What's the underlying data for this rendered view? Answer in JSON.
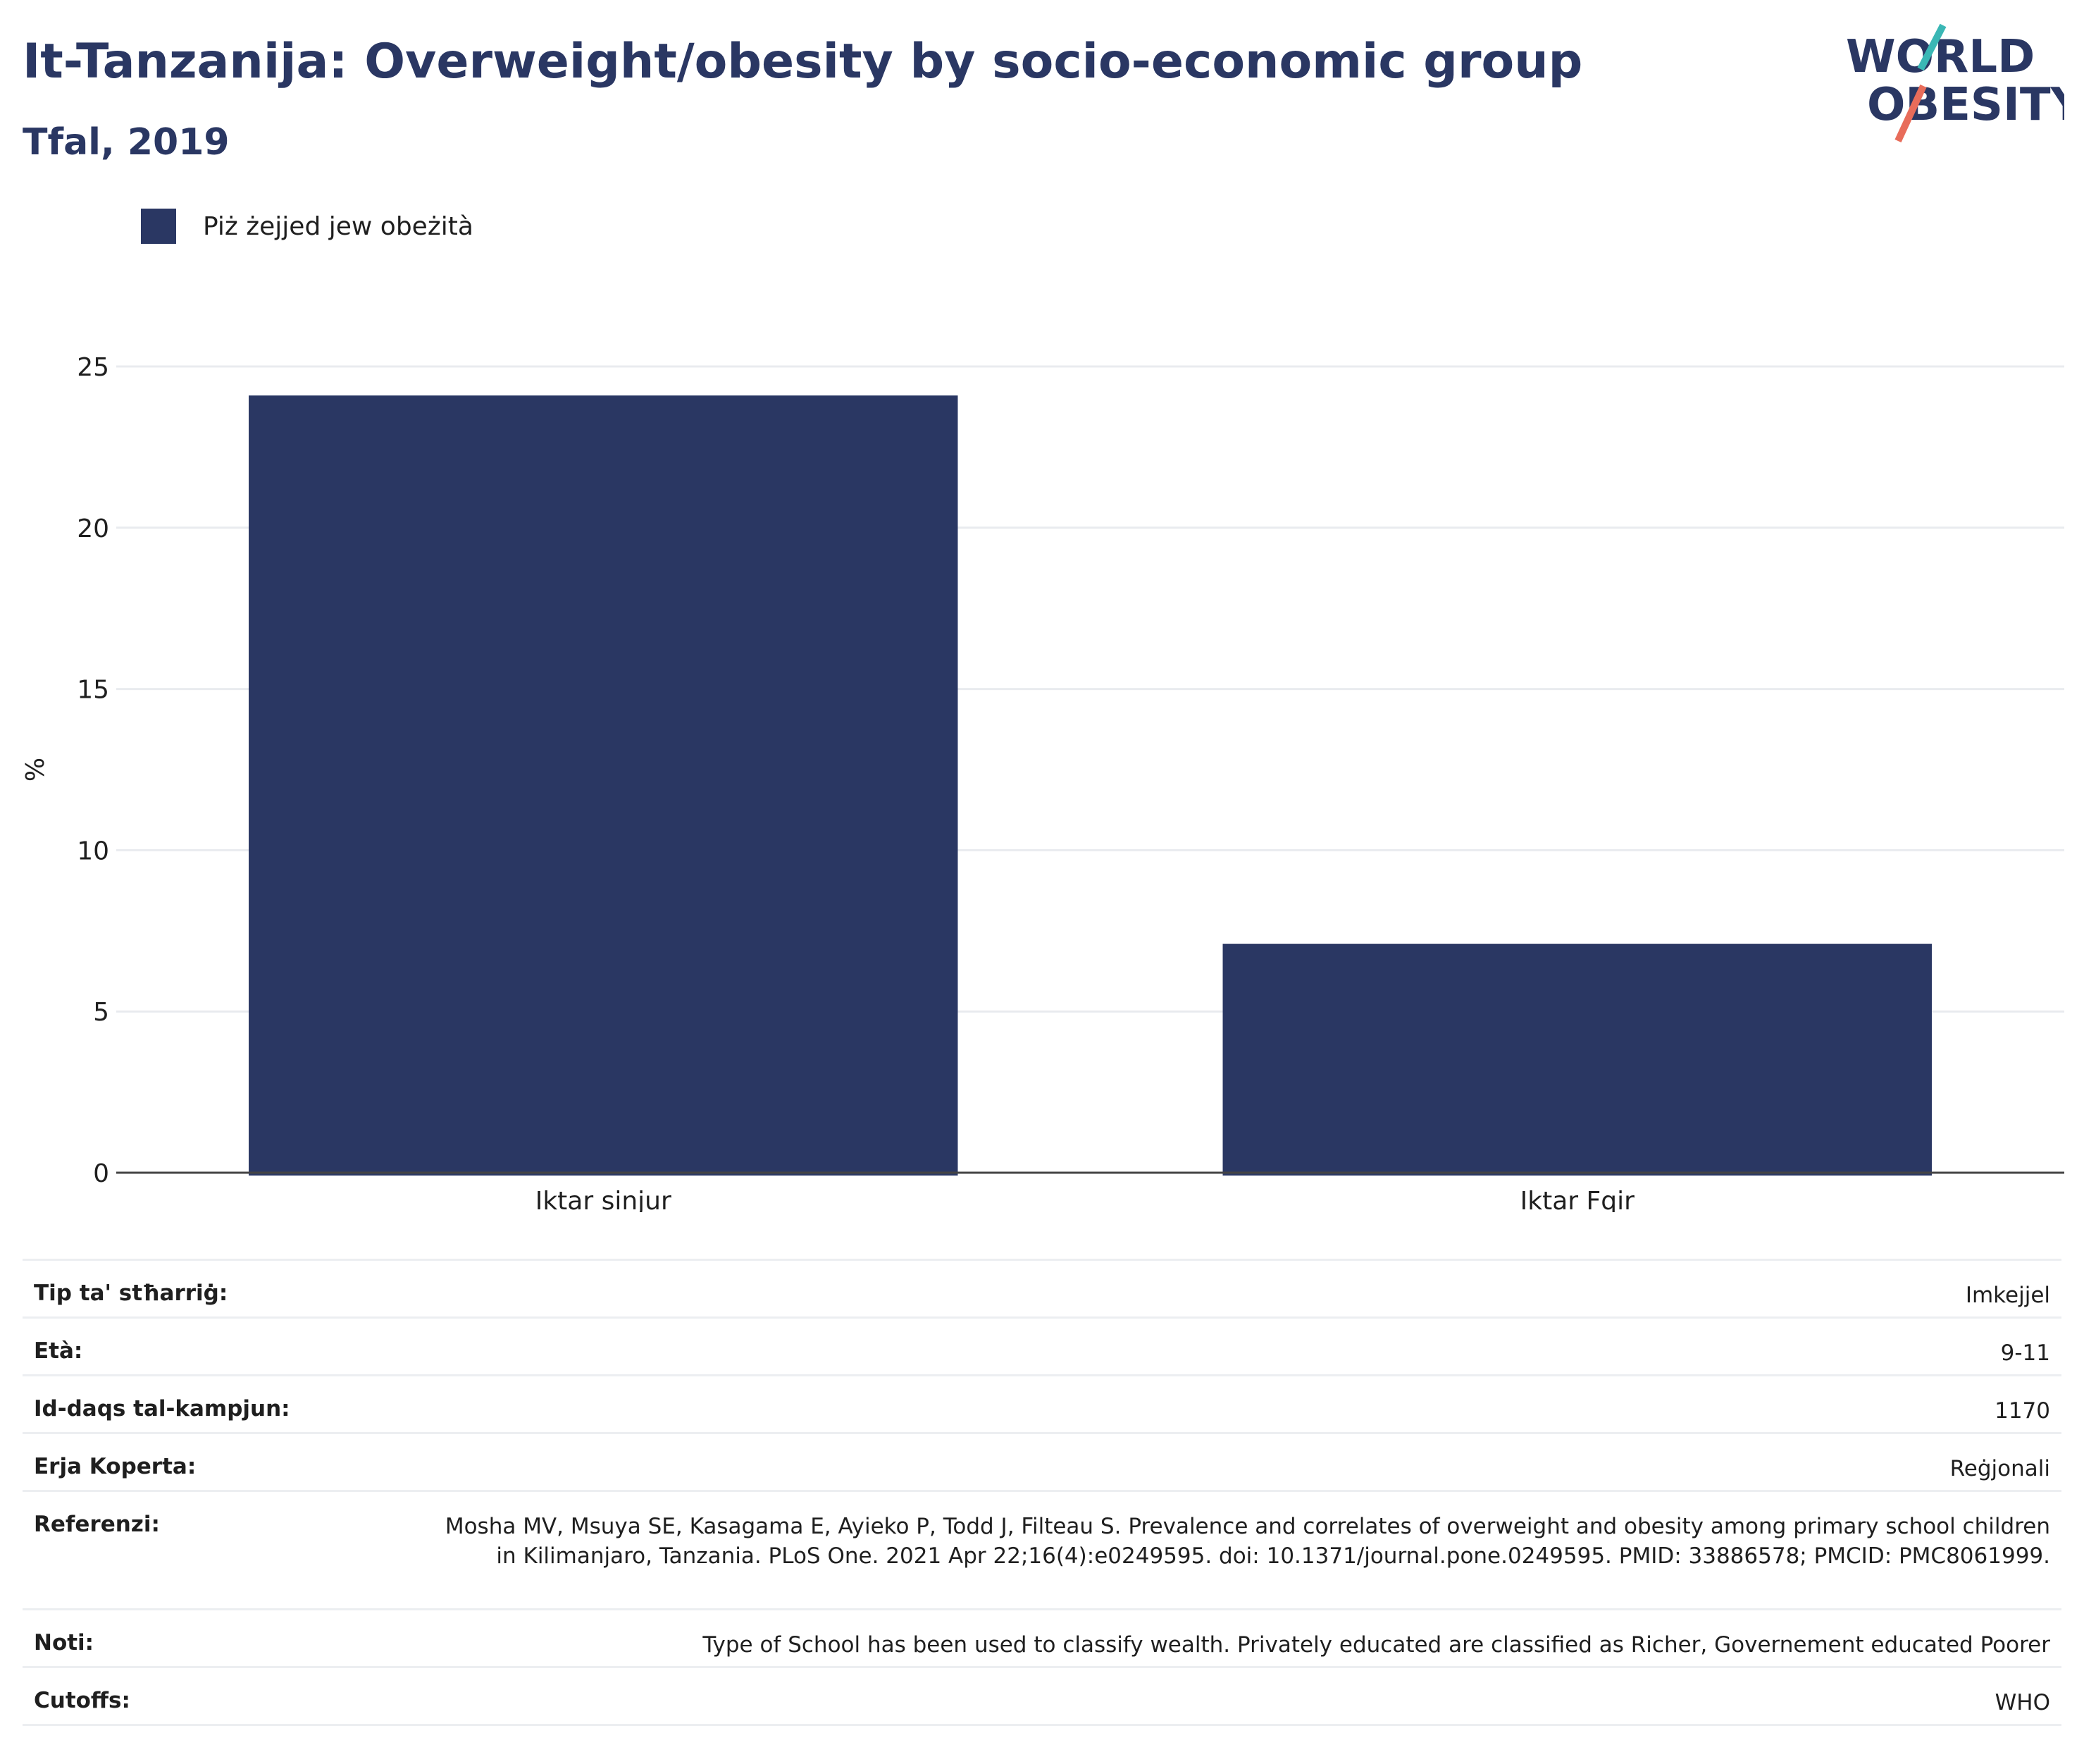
{
  "header": {
    "title": "It-Tanzanija: Overweight/obesity by socio-economic group",
    "subtitle": "Tfal, 2019"
  },
  "logo": {
    "line1": "WORLD",
    "line2": "OBESITY",
    "icon": "world-obesity-logo"
  },
  "colors": {
    "bar": "#2a3763",
    "title": "#2a3763",
    "grid": "#e9ebef",
    "logo_teal": "#3ab7b5",
    "logo_coral": "#e86c5a"
  },
  "chart_data": {
    "type": "bar",
    "categories": [
      "Iktar sinjur",
      "Iktar Fqir"
    ],
    "series": [
      {
        "name": "Piż żejjed jew obeżità",
        "values": [
          24.1,
          7.1
        ]
      }
    ],
    "ylabel": "%",
    "xlabel": "",
    "ylim": [
      0,
      25
    ],
    "yticks": [
      0,
      5,
      10,
      15,
      20,
      25
    ],
    "grid": true,
    "legend": "top-left"
  },
  "info": [
    {
      "label": "Tip ta' stħarriġ:",
      "value": "Imkejjel"
    },
    {
      "label": "Età:",
      "value": "9-11"
    },
    {
      "label": "Id-daqs tal-kampjun:",
      "value": "1170"
    },
    {
      "label": "Erja Koperta:",
      "value": "Reġjonali"
    },
    {
      "label": "Referenzi:",
      "value": "Mosha MV, Msuya SE, Kasagama E, Ayieko P, Todd J, Filteau S. Prevalence and correlates of overweight and obesity among primary school children in Kilimanjaro, Tanzania. PLoS One. 2021 Apr 22;16(4):e0249595. doi: 10.1371/journal.pone.0249595. PMID: 33886578; PMCID: PMC8061999."
    },
    {
      "label": "Noti:",
      "value": "Type of School has been used to classify wealth. Privately educated are classified as Richer, Governement educated Poorer"
    },
    {
      "label": "Cutoffs:",
      "value": "WHO"
    }
  ]
}
